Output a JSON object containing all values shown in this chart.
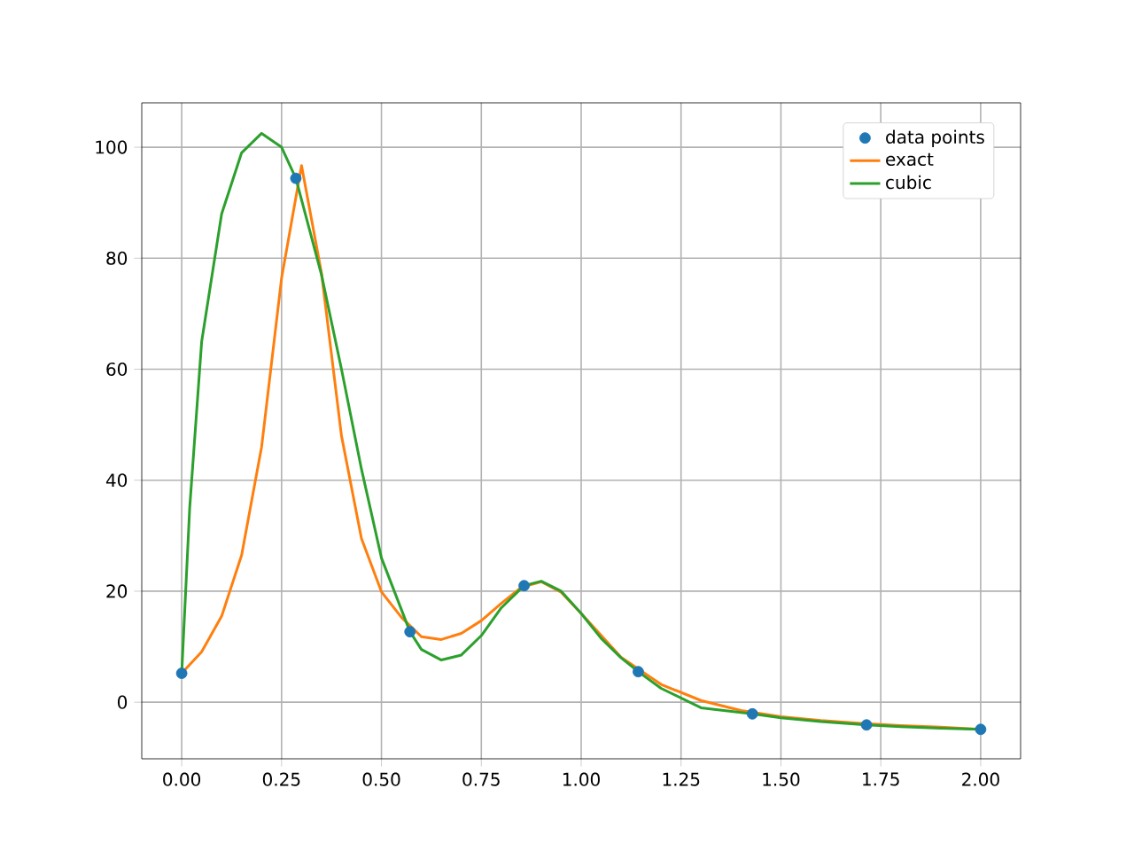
{
  "chart_data": {
    "type": "line",
    "series": [
      {
        "name": "data points",
        "type": "scatter",
        "color": "#1f77b4",
        "marker": "circle",
        "x": [
          0,
          0.2857,
          0.5714,
          0.8571,
          1.1429,
          1.4286,
          1.7143,
          2.0
        ],
        "values": [
          5.2,
          94.4,
          12.7,
          21.0,
          5.5,
          -2.1,
          -4.1,
          -4.9
        ]
      },
      {
        "name": "exact",
        "color": "#ff7f0e",
        "x": [
          0,
          0.05,
          0.1,
          0.15,
          0.2,
          0.25,
          0.3,
          0.35,
          0.4,
          0.45,
          0.5,
          0.55,
          0.6,
          0.65,
          0.7,
          0.75,
          0.8,
          0.85,
          0.9,
          0.95,
          1.0,
          1.1,
          1.2,
          1.3,
          1.4,
          1.5,
          1.6,
          1.7,
          1.8,
          1.9,
          2.0
        ],
        "values": [
          5.2,
          9.1,
          15.5,
          26.5,
          46.0,
          76.4,
          96.7,
          77.3,
          48.0,
          29.5,
          19.9,
          15.3,
          11.8,
          11.3,
          12.4,
          14.7,
          17.8,
          20.7,
          21.7,
          19.8,
          16.0,
          8.1,
          3.2,
          0.3,
          -1.5,
          -2.6,
          -3.3,
          -3.8,
          -4.2,
          -4.5,
          -4.9
        ]
      },
      {
        "name": "cubic",
        "color": "#2ca02c",
        "x": [
          0,
          0.02,
          0.05,
          0.1,
          0.15,
          0.2,
          0.25,
          0.2857,
          0.35,
          0.4,
          0.45,
          0.5,
          0.5714,
          0.6,
          0.65,
          0.7,
          0.75,
          0.8,
          0.8571,
          0.9,
          0.95,
          1.0,
          1.05,
          1.1,
          1.1429,
          1.2,
          1.3,
          1.4286,
          1.5,
          1.6,
          1.7143,
          1.8,
          1.9,
          2.0
        ],
        "values": [
          5.2,
          35,
          65,
          88,
          99,
          102.5,
          100,
          94.4,
          77,
          60,
          42,
          26,
          12.7,
          9.5,
          7.6,
          8.5,
          12,
          17,
          21.0,
          21.8,
          20,
          16,
          11.5,
          8,
          5.5,
          2.5,
          -1.0,
          -2.1,
          -2.8,
          -3.5,
          -4.1,
          -4.4,
          -4.7,
          -4.9
        ]
      }
    ],
    "xlim": [
      -0.1,
      2.1
    ],
    "ylim": [
      -10.2,
      108
    ],
    "xticks": [
      {
        "value": 0,
        "label": "0.00"
      },
      {
        "value": 0.25,
        "label": "0.25"
      },
      {
        "value": 0.5,
        "label": "0.50"
      },
      {
        "value": 0.75,
        "label": "0.75"
      },
      {
        "value": 1.0,
        "label": "1.00"
      },
      {
        "value": 1.25,
        "label": "1.25"
      },
      {
        "value": 1.5,
        "label": "1.50"
      },
      {
        "value": 1.75,
        "label": "1.75"
      },
      {
        "value": 2.0,
        "label": "2.00"
      }
    ],
    "yticks": [
      0,
      20,
      40,
      60,
      80,
      100
    ],
    "grid": true,
    "legend": "top right",
    "line_style": "solid"
  }
}
